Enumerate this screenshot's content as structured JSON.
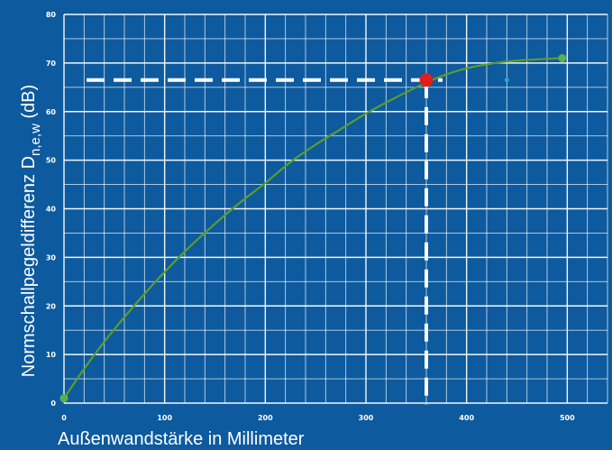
{
  "chart_data": {
    "type": "line",
    "xlabel": "Außenwandstärke in Millimeter",
    "ylabel_main": "Normschallpegeldifferenz D",
    "ylabel_sub": "n,e,w",
    "ylabel_unit": " (dB)",
    "xlim": [
      0,
      540
    ],
    "ylim": [
      0,
      80
    ],
    "x_ticks": [
      0,
      100,
      200,
      300,
      400,
      500
    ],
    "x_tick_labels": [
      "0",
      "100",
      "200",
      "300",
      "400",
      "500"
    ],
    "y_ticks": [
      0,
      10,
      20,
      30,
      40,
      50,
      60,
      70,
      80
    ],
    "y_tick_labels": [
      "0",
      "10",
      "20",
      "30",
      "40",
      "50",
      "60",
      "70",
      "80"
    ],
    "grid": true,
    "series": [
      {
        "color": "#5a9e2a",
        "x": [
          0,
          25,
          50,
          75,
          100,
          125,
          150,
          175,
          200,
          225,
          250,
          275,
          300,
          325,
          350,
          375,
          400,
          425,
          450,
          475,
          495
        ],
        "y": [
          1,
          8.5,
          15.2,
          21.3,
          27.0,
          32.2,
          36.9,
          41.3,
          45.3,
          49.6,
          53.2,
          56.4,
          59.6,
          62.4,
          65.0,
          67.3,
          68.9,
          69.9,
          70.5,
          70.8,
          71
        ]
      }
    ],
    "endpoints": [
      {
        "x": 0,
        "y": 1,
        "color": "#5ab04a"
      },
      {
        "x": 495,
        "y": 71,
        "color": "#5ab04a"
      }
    ],
    "highlight": {
      "x": 360,
      "y": 66.5,
      "color": "#e01e1e"
    },
    "small_marker": {
      "x": 440,
      "y": 66.5,
      "color": "#2aa3e0"
    },
    "colors": {
      "background": "#0d5a9e",
      "grid": "#ffffff",
      "curve": "#5a9e2a",
      "highlight": "#e01e1e",
      "guide": "#ffffff"
    }
  }
}
